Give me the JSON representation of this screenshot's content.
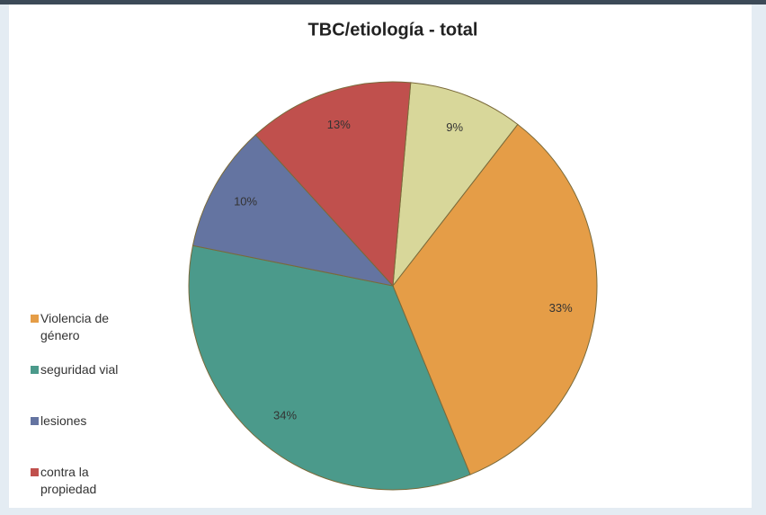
{
  "chart_data": {
    "type": "pie",
    "title": "TBC/etiología - total",
    "categories": [
      null,
      "Violencia de género",
      "seguridad vial",
      "lesiones",
      "contra la propiedad"
    ],
    "values": [
      9,
      33,
      34,
      10,
      13
    ],
    "value_labels": [
      "9%",
      "33%",
      "34%",
      "10%",
      "13%"
    ],
    "colors": [
      "#d8d79a",
      "#e59d47",
      "#4b9a8b",
      "#6474a1",
      "#c0504d"
    ]
  }
}
